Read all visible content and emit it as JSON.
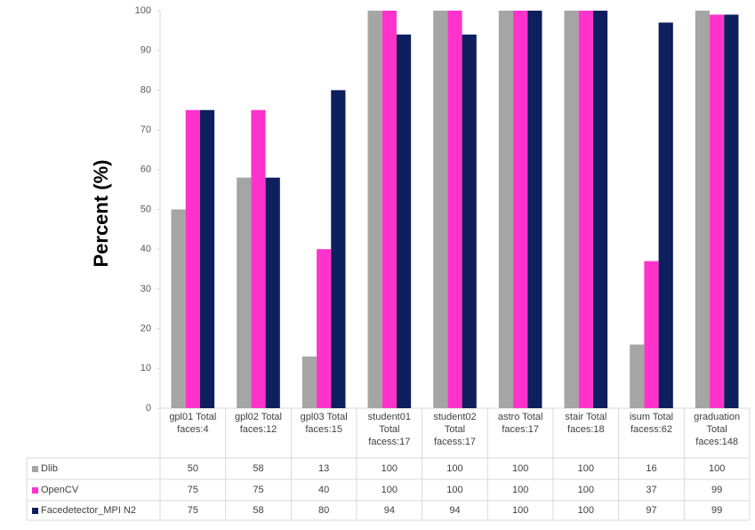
{
  "chart_data": {
    "type": "bar",
    "y_label": "Percent (%)",
    "categories": [
      "gpl01 Total faces:4",
      "gpl02 Total faces:12",
      "gpl03 Total faces:15",
      "student01 Total facess:17",
      "student02 Total facess:17",
      "astro Total faces:17",
      "stair Total faces:18",
      "isum Total facess:62",
      "graduation Total faces:148"
    ],
    "series": [
      {
        "name": "Dlib",
        "color": "#a5a5a5",
        "values": [
          50,
          58,
          13,
          100,
          100,
          100,
          100,
          16,
          100
        ]
      },
      {
        "name": "OpenCV",
        "color": "#ff33cc",
        "values": [
          75,
          75,
          40,
          100,
          100,
          100,
          100,
          37,
          99
        ]
      },
      {
        "name": "Facedetector_MPI N2",
        "color": "#0d1f5c",
        "values": [
          75,
          58,
          80,
          94,
          94,
          100,
          100,
          97,
          99
        ]
      }
    ],
    "ylim": [
      0,
      100
    ],
    "yticks": [
      0,
      10,
      20,
      30,
      40,
      50,
      60,
      70,
      80,
      90,
      100
    ],
    "grid": false
  }
}
